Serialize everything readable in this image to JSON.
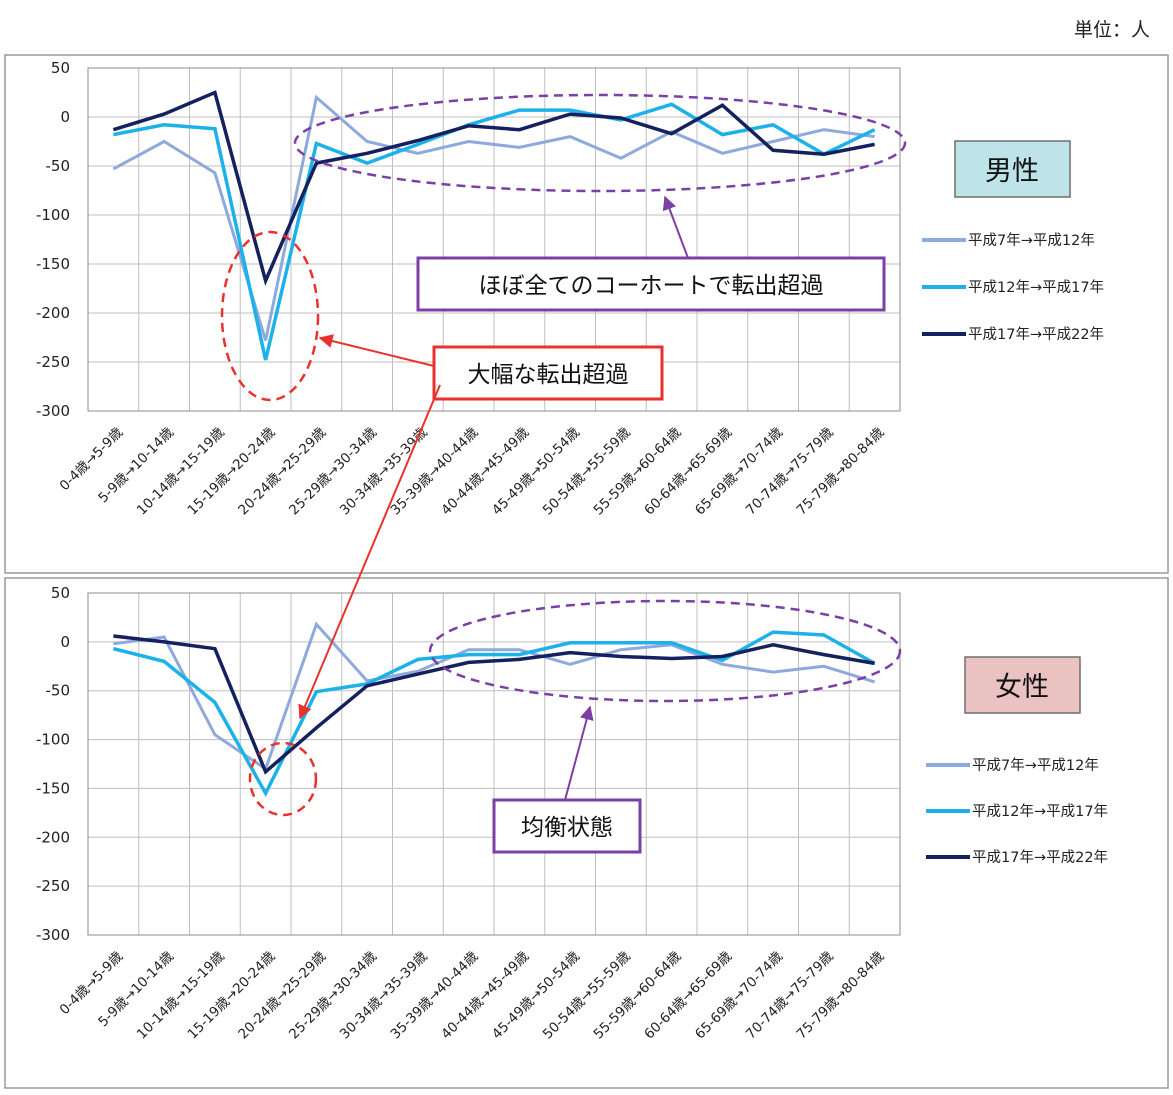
{
  "unit_label": "単位：人",
  "colors": {
    "series": [
      "#8EA9DB",
      "#1CB1E8",
      "#14215E"
    ],
    "ellipse_highlight": "#E8322B",
    "ellipse_region": "#7B3FA6",
    "male_badge_bg": "#BEE3E8",
    "female_badge_bg": "#EBC2C2"
  },
  "chart_data": [
    {
      "type": "line",
      "panel": "male",
      "badge": "男性",
      "categories": [
        "0-4歳→5-9歳",
        "5-9歳→10-14歳",
        "10-14歳→15-19歳",
        "15-19歳→20-24歳",
        "20-24歳→25-29歳",
        "25-29歳→30-34歳",
        "30-34歳→35-39歳",
        "35-39歳→40-44歳",
        "40-44歳→45-49歳",
        "45-49歳→50-54歳",
        "50-54歳→55-59歳",
        "55-59歳→60-64歳",
        "60-64歳→65-69歳",
        "65-69歳→70-74歳",
        "70-74歳→75-79歳",
        "75-79歳→80-84歳"
      ],
      "series": [
        {
          "name": "平成7年→平成12年",
          "values": [
            -53,
            -25,
            -57,
            -228,
            20,
            -25,
            -37,
            -25,
            -31,
            -20,
            -42,
            -15,
            -37,
            -25,
            -13,
            -20
          ]
        },
        {
          "name": "平成12年→平成17年",
          "values": [
            -18,
            -8,
            -12,
            -248,
            -27,
            -47,
            -28,
            -8,
            7,
            7,
            -3,
            13,
            -18,
            -8,
            -38,
            -13
          ]
        },
        {
          "name": "平成17年→平成22年",
          "values": [
            -13,
            3,
            25,
            -167,
            -47,
            -37,
            -24,
            -9,
            -13,
            3,
            -1,
            -17,
            12,
            -34,
            -38,
            -28
          ]
        }
      ],
      "ylim": [
        -300,
        50
      ],
      "yticks": [
        50,
        0,
        -50,
        -100,
        -150,
        -200,
        -250,
        -300
      ],
      "grid": true,
      "legend_position": "right",
      "annotations": [
        "ほぼ全てのコーホートで転出超過",
        "大幅な転出超過"
      ]
    },
    {
      "type": "line",
      "panel": "female",
      "badge": "女性",
      "categories": [
        "0-4歳→5-9歳",
        "5-9歳→10-14歳",
        "10-14歳→15-19歳",
        "15-19歳→20-24歳",
        "20-24歳→25-29歳",
        "25-29歳→30-34歳",
        "30-34歳→35-39歳",
        "35-39歳→40-44歳",
        "40-44歳→45-49歳",
        "45-49歳→50-54歳",
        "50-54歳→55-59歳",
        "55-59歳→60-64歳",
        "60-64歳→65-69歳",
        "65-69歳→70-74歳",
        "70-74歳→75-79歳",
        "75-79歳→80-84歳"
      ],
      "series": [
        {
          "name": "平成7年→平成12年",
          "values": [
            -2,
            5,
            -95,
            -130,
            18,
            -40,
            -30,
            -8,
            -8,
            -23,
            -8,
            -3,
            -23,
            -31,
            -25,
            -41
          ]
        },
        {
          "name": "平成12年→平成17年",
          "values": [
            -7,
            -20,
            -62,
            -155,
            -51,
            -43,
            -18,
            -13,
            -13,
            -1,
            -1,
            -1,
            -19,
            10,
            7,
            -22
          ]
        },
        {
          "name": "平成17年→平成22年",
          "values": [
            6,
            0,
            -7,
            -133,
            -88,
            -45,
            -33,
            -21,
            -18,
            -11,
            -15,
            -17,
            -15,
            -3,
            -13,
            -22
          ]
        }
      ],
      "ylim": [
        -300,
        50
      ],
      "yticks": [
        50,
        0,
        -50,
        -100,
        -150,
        -200,
        -250,
        -300
      ],
      "grid": true,
      "legend_position": "right",
      "annotations": [
        "均衡状態"
      ]
    }
  ]
}
